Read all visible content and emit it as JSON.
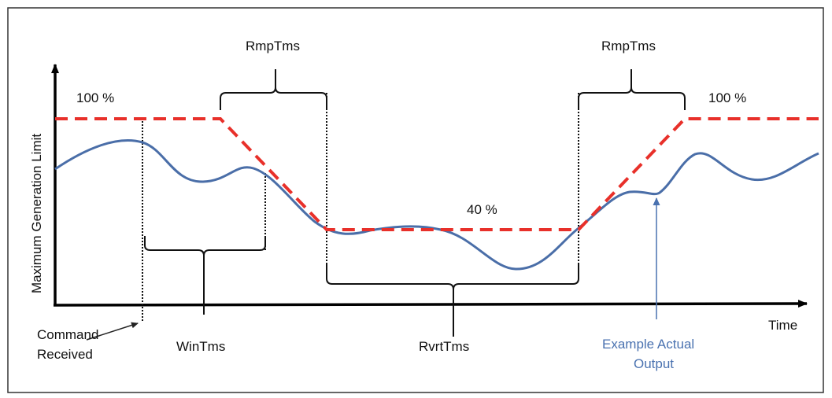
{
  "axes": {
    "ylabel": "Maximum Generation Limit",
    "xlabel": "Time"
  },
  "levels": {
    "high_left": "100 %",
    "high_right": "100 %",
    "low": "40 %"
  },
  "intervals": {
    "ramp_down": "RmpTms",
    "ramp_up": "RmpTms",
    "window": "WinTms",
    "revert": "RvrtTms"
  },
  "annotations": {
    "command_line1": "Command",
    "command_line2": "Received",
    "output_line1": "Example Actual",
    "output_line2": "Output"
  },
  "colors": {
    "limit_line": "#e8302a",
    "actual_output": "#4a6ea8",
    "output_annotation": "#4a72b0",
    "axes": "#000000",
    "frame": "#333333"
  }
}
